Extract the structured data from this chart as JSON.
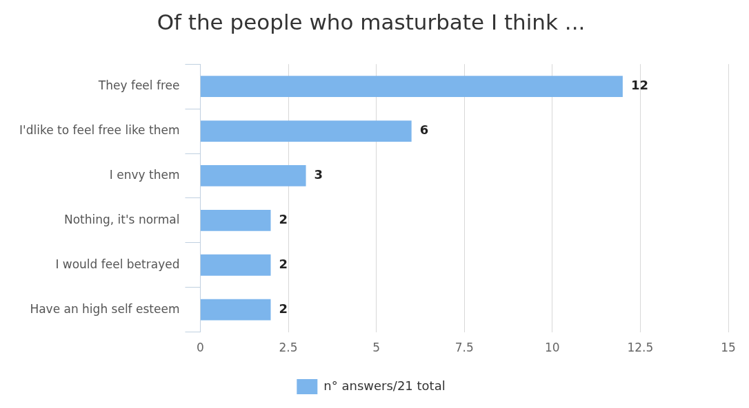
{
  "chart_data": {
    "type": "bar",
    "orientation": "horizontal",
    "title": "Of the people who masturbate I think ...",
    "categories": [
      "They feel free",
      "I'dlike to feel free like them",
      "I envy them",
      "Nothing, it's normal",
      "I would feel betrayed",
      "Have an high self esteem"
    ],
    "series": [
      {
        "name": "n° answers/21 total",
        "color": "#7cb5ec",
        "values": [
          12,
          6,
          3,
          2,
          2,
          2
        ]
      }
    ],
    "xlim": [
      0,
      15
    ],
    "xticks": [
      0,
      {
        "value": 2.5,
        "label": "2.5"
      },
      5,
      {
        "value": 7.5,
        "label": "7.5"
      },
      10,
      {
        "value": 12.5,
        "label": "12.5"
      },
      15
    ],
    "grid": "x",
    "legend": "bottom",
    "data_labels": true
  }
}
